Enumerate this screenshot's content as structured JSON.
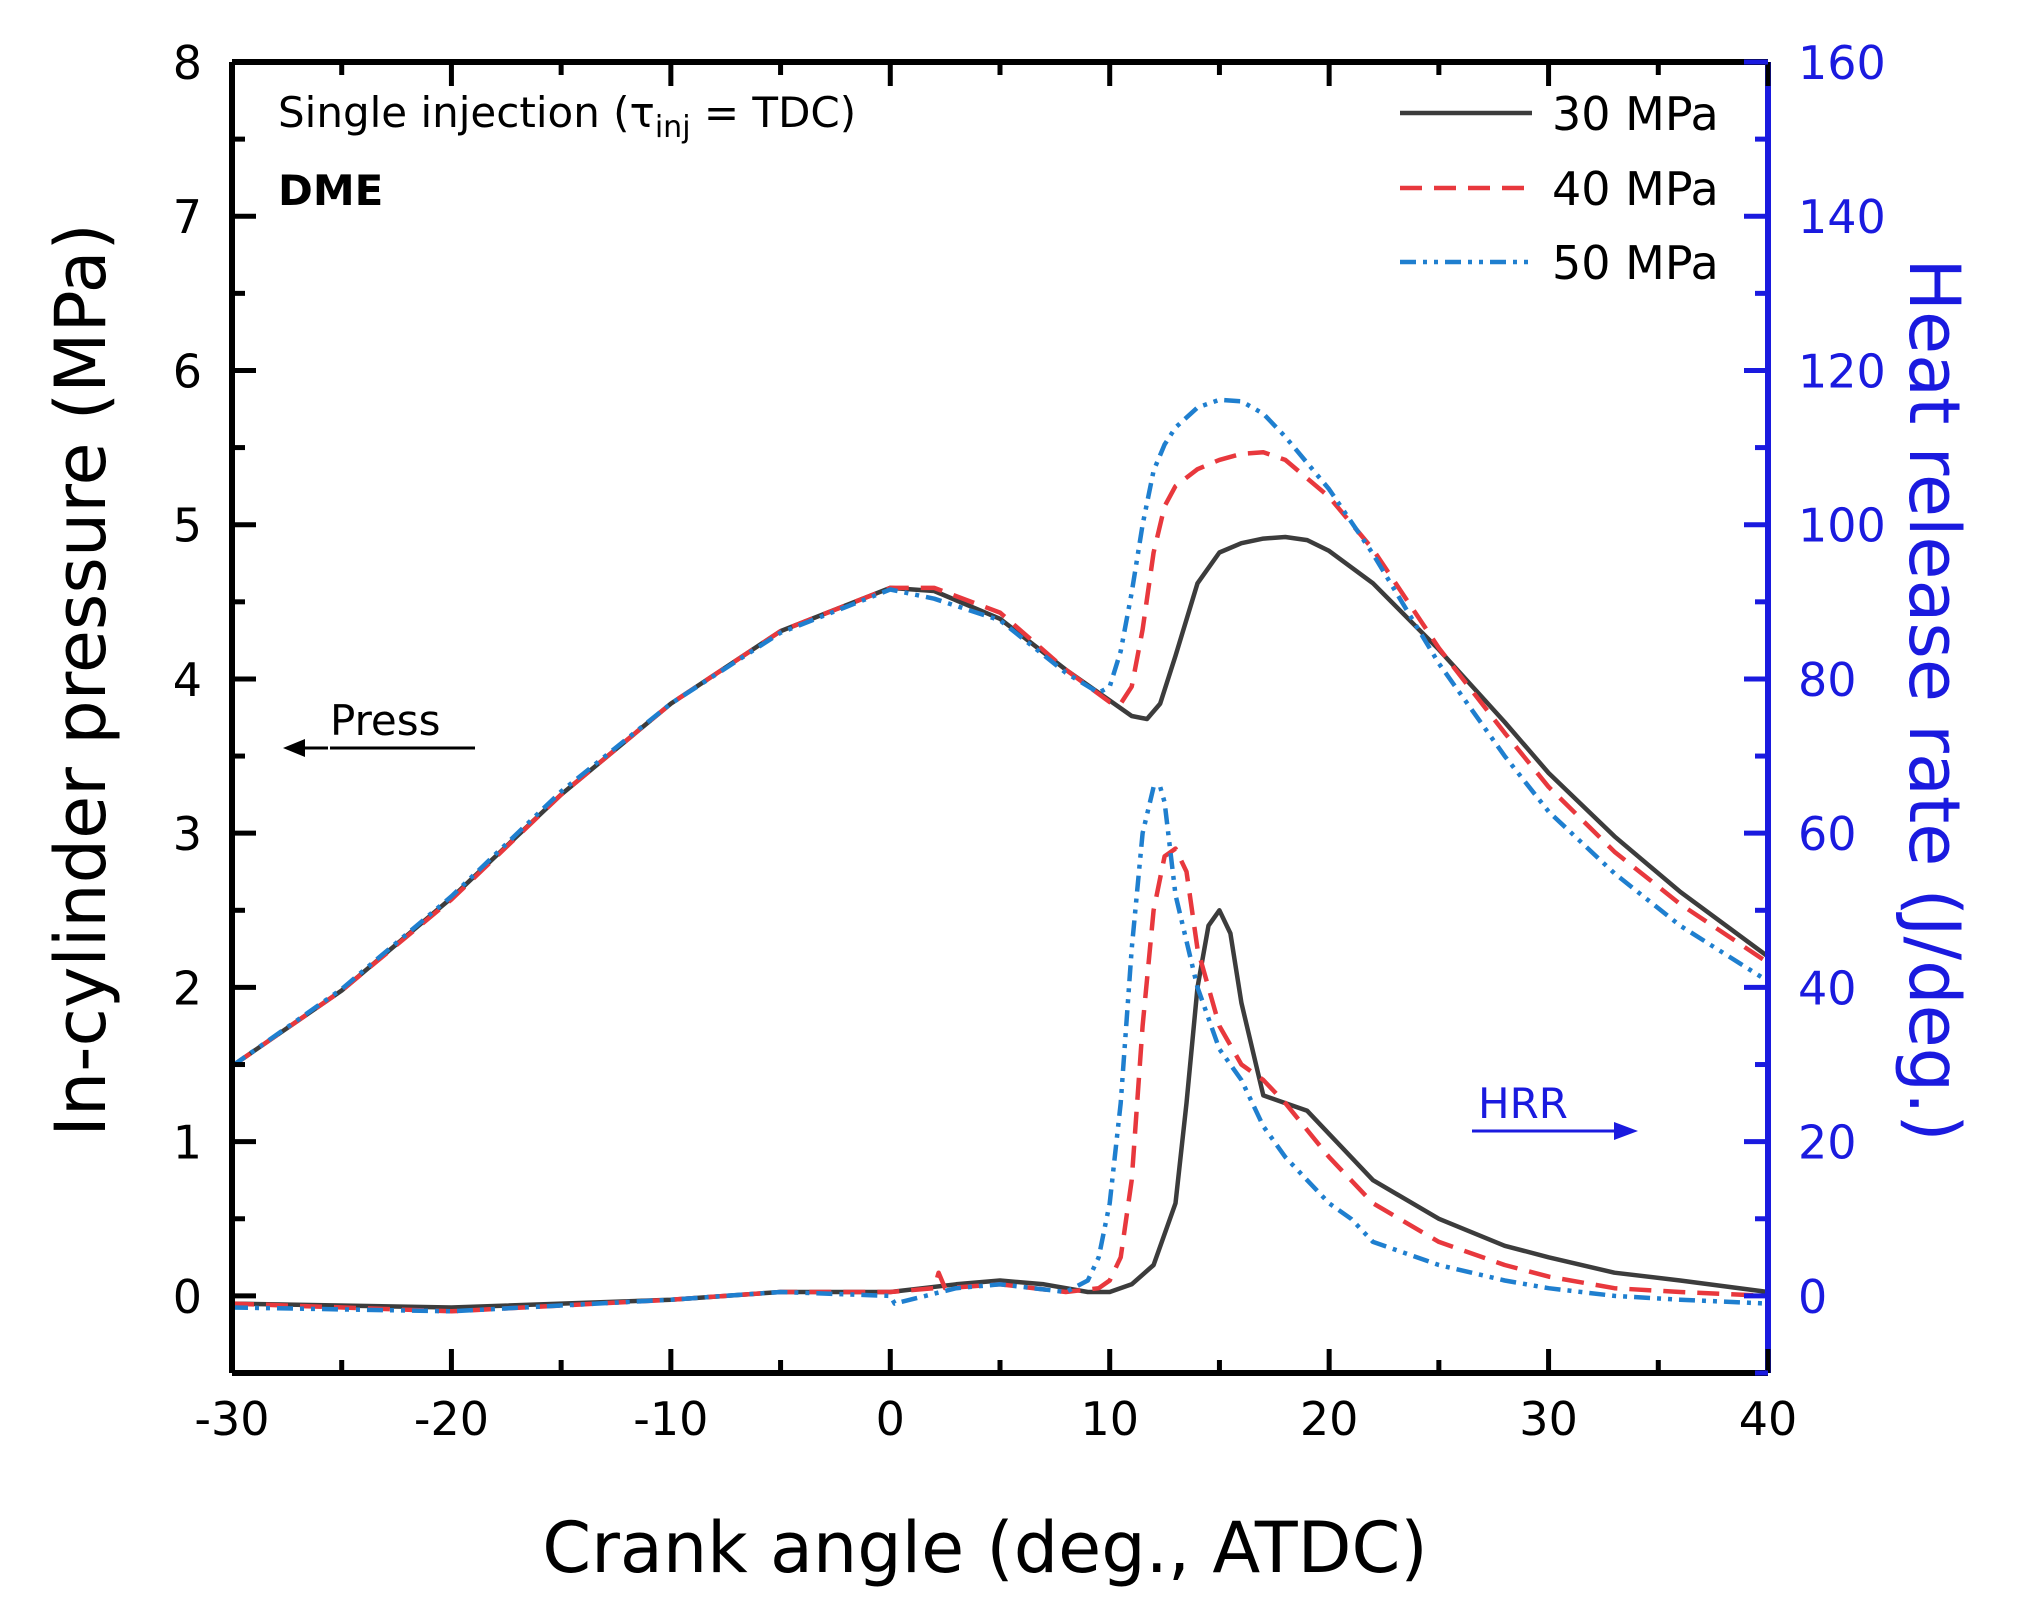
{
  "chart_data": {
    "type": "line",
    "title": "",
    "xlabel": "Crank angle (deg., ATDC)",
    "ylabel": "In-cylinder pressure (MPa)",
    "y2label": "Heat release rate (J/deg.)",
    "xlim": [
      -30,
      40
    ],
    "ylim": [
      -0.5,
      8
    ],
    "y2lim": [
      -10,
      160
    ],
    "xticks": [
      -30,
      -20,
      -10,
      0,
      10,
      20,
      30,
      40
    ],
    "yticks": [
      0,
      1,
      2,
      3,
      4,
      5,
      6,
      7,
      8
    ],
    "y2ticks": [
      0,
      20,
      40,
      60,
      80,
      100,
      120,
      140,
      160
    ],
    "annotations": {
      "condition_prefix": "Single injection (",
      "tau": "τ",
      "tau_sub": "inj",
      "condition_suffix": " = TDC)",
      "fuel": "DME",
      "press_label": "Press",
      "hrr_label": "HRR"
    },
    "legend_position": "top-right",
    "colors": {
      "30 MPa": "#3c3c3c",
      "40 MPa": "#e8383d",
      "50 MPa": "#1f7fcf",
      "right_axis": "#1a1adf"
    },
    "series": [
      {
        "name": "30 MPa",
        "dash": "solid",
        "pressure": {
          "x": [
            -30,
            -25,
            -20,
            -15,
            -10,
            -5,
            0,
            2,
            5,
            8,
            10,
            11,
            11.7,
            12.3,
            13,
            14,
            15,
            16,
            17,
            18,
            19,
            20,
            22,
            25,
            28,
            30,
            33,
            36,
            40
          ],
          "y": [
            1.49,
            1.98,
            2.58,
            3.25,
            3.84,
            4.31,
            4.59,
            4.57,
            4.39,
            4.06,
            3.86,
            3.76,
            3.74,
            3.84,
            4.15,
            4.62,
            4.82,
            4.88,
            4.91,
            4.92,
            4.9,
            4.83,
            4.62,
            4.19,
            3.72,
            3.39,
            2.98,
            2.62,
            2.2
          ]
        },
        "hrr": {
          "x": [
            -30,
            -20,
            -10,
            -5,
            0,
            3,
            5,
            7,
            9,
            10,
            11,
            12,
            13,
            13.5,
            14,
            14.5,
            15,
            15.5,
            16,
            17,
            18,
            19,
            20,
            22,
            25,
            28,
            30,
            33,
            36,
            40
          ],
          "y": [
            -1,
            -1.5,
            -0.5,
            0.5,
            0.5,
            1.5,
            2,
            1.5,
            0.5,
            0.5,
            1.5,
            4,
            12,
            25,
            40,
            48,
            50,
            47,
            38,
            26,
            25,
            24,
            21,
            15,
            10,
            6.5,
            5,
            3,
            2,
            0.5
          ]
        }
      },
      {
        "name": "40 MPa",
        "dash": "dashed",
        "pressure": {
          "x": [
            -30,
            -25,
            -20,
            -15,
            -10,
            -5,
            0,
            2,
            5,
            8,
            10,
            10.5,
            11,
            11.5,
            12,
            12.5,
            13,
            14,
            15,
            16,
            17,
            18,
            20,
            22,
            25,
            28,
            30,
            33,
            36,
            40
          ],
          "y": [
            1.49,
            1.98,
            2.57,
            3.25,
            3.84,
            4.31,
            4.59,
            4.59,
            4.43,
            4.06,
            3.85,
            3.84,
            3.95,
            4.32,
            4.82,
            5.12,
            5.25,
            5.36,
            5.42,
            5.46,
            5.47,
            5.42,
            5.18,
            4.84,
            4.2,
            3.65,
            3.3,
            2.88,
            2.54,
            2.16
          ]
        },
        "hrr": {
          "x": [
            -30,
            -20,
            -10,
            -5,
            0,
            2,
            2.2,
            2.5,
            5,
            8,
            9.5,
            10,
            10.5,
            11,
            11.5,
            12,
            12.5,
            13,
            13.5,
            14,
            15,
            16,
            17,
            18,
            20,
            22,
            25,
            28,
            30,
            33,
            36,
            40
          ],
          "y": [
            -1,
            -2,
            -0.5,
            0.5,
            0.5,
            1,
            3,
            1,
            1.5,
            0.5,
            1,
            2,
            5,
            15,
            35,
            50,
            57,
            58,
            55,
            45,
            35,
            30,
            28,
            25,
            18,
            12,
            7,
            4,
            2.5,
            1,
            0.5,
            0
          ]
        }
      },
      {
        "name": "50 MPa",
        "dash": "dash-dot-dot",
        "pressure": {
          "x": [
            -30,
            -25,
            -20,
            -15,
            -10,
            -5,
            0,
            2,
            5,
            8,
            9.5,
            10,
            10.5,
            11,
            11.5,
            12,
            12.5,
            13,
            14,
            15,
            16,
            17,
            18,
            20,
            22,
            25,
            28,
            30,
            33,
            36,
            40
          ],
          "y": [
            1.49,
            1.99,
            2.59,
            3.27,
            3.84,
            4.3,
            4.58,
            4.52,
            4.38,
            4.04,
            3.91,
            3.95,
            4.18,
            4.56,
            5.0,
            5.35,
            5.52,
            5.63,
            5.76,
            5.81,
            5.8,
            5.72,
            5.57,
            5.23,
            4.81,
            4.1,
            3.5,
            3.14,
            2.74,
            2.4,
            2.04
          ]
        },
        "hrr": {
          "x": [
            -30,
            -20,
            -10,
            -5,
            0,
            0.2,
            3,
            5,
            8,
            9,
            9.5,
            10,
            10.5,
            11,
            11.5,
            12,
            12.3,
            12.5,
            13,
            14,
            15,
            16,
            17,
            18,
            20,
            21,
            22,
            25,
            28,
            30,
            33,
            36,
            40
          ],
          "y": [
            -1.5,
            -2,
            -0.5,
            0.5,
            0,
            -1,
            1,
            1.5,
            0.5,
            2,
            5,
            12,
            25,
            45,
            60,
            66,
            66,
            64,
            52,
            40,
            32,
            28,
            22,
            18,
            12,
            10,
            7,
            4,
            2,
            1,
            0,
            -0.5,
            -1
          ]
        }
      }
    ]
  }
}
